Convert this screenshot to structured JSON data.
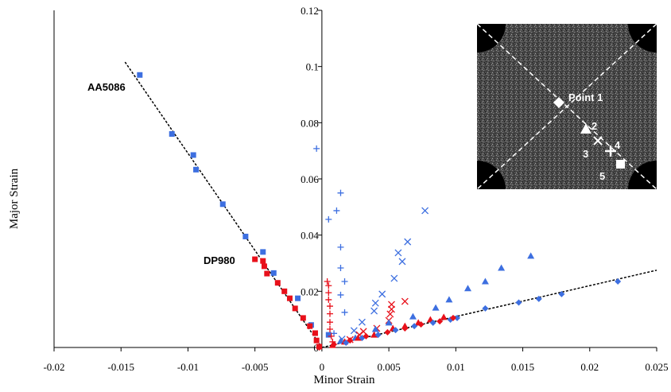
{
  "chart_data": {
    "type": "scatter",
    "x_label": "Minor Strain",
    "y_label": "Major Strain",
    "xlim": [
      -0.02,
      0.025
    ],
    "xticks": [
      -0.02,
      -0.015,
      -0.01,
      -0.005,
      0,
      0.005,
      0.01,
      0.015,
      0.02,
      0.025
    ],
    "ylim": [
      0,
      0.12
    ],
    "yticks": [
      0,
      0.02,
      0.04,
      0.06,
      0.08,
      0.1,
      0.12
    ],
    "annotations": [
      "AA5086",
      "DP980"
    ],
    "inset_labels": [
      "Point 1",
      "2",
      "3",
      "4",
      "5"
    ],
    "series": [
      {
        "marker": "square",
        "color": "#3d6fe0",
        "x": [
          -0.0136,
          -0.0112,
          -0.0096,
          -0.0094,
          -0.0074,
          -0.0057,
          -0.0044,
          -0.0036,
          -0.0018,
          -0.0008,
          0.0005
        ],
        "y": [
          0.097,
          0.076,
          0.0685,
          0.0633,
          0.051,
          0.0395,
          0.034,
          0.0265,
          0.0175,
          0.008,
          0.0045
        ]
      },
      {
        "marker": "square",
        "color": "#e8101a",
        "x": [
          -0.005,
          -0.0044,
          -0.0043,
          -0.0041,
          -0.0033,
          -0.0028,
          -0.0024,
          -0.002,
          -0.0014,
          -0.0009,
          -0.0005,
          -0.0004,
          -0.0002
        ],
        "y": [
          0.0314,
          0.0308,
          0.0289,
          0.0263,
          0.023,
          0.02,
          0.0175,
          0.0139,
          0.0105,
          0.0076,
          0.0051,
          0.0025,
          0.0003
        ]
      },
      {
        "marker": "plus",
        "color": "#3d6fe0",
        "x": [
          -0.0004,
          0.0014,
          0.0011,
          0.0005,
          0.0014,
          0.0014,
          0.0017,
          0.0014,
          0.0017,
          0.0009
        ],
        "y": [
          0.0708,
          0.055,
          0.0487,
          0.0456,
          0.0357,
          0.0283,
          0.0235,
          0.0187,
          0.0125,
          0.005
        ]
      },
      {
        "marker": "plus",
        "color": "#e8101a",
        "x": [
          0.0004,
          0.0005,
          0.0005,
          0.0005,
          0.0006,
          0.0006,
          0.0006,
          0.0006,
          0.0007,
          0.0008
        ],
        "y": [
          0.0235,
          0.022,
          0.0195,
          0.017,
          0.0147,
          0.012,
          0.009,
          0.0065,
          0.004,
          0.002
        ]
      },
      {
        "marker": "cross",
        "color": "#3d6fe0",
        "x": [
          0.0077,
          0.0064,
          0.0057,
          0.006,
          0.0054,
          0.0045,
          0.004,
          0.0039,
          0.003,
          0.0024,
          0.0015
        ],
        "y": [
          0.0487,
          0.0376,
          0.0337,
          0.0306,
          0.0246,
          0.019,
          0.0158,
          0.013,
          0.009,
          0.006,
          0.003
        ]
      },
      {
        "marker": "cross",
        "color": "#e8101a",
        "x": [
          0.0062,
          0.0052,
          0.0052,
          0.0051,
          0.005,
          0.0041,
          0.0031,
          0.0028,
          0.0021
        ],
        "y": [
          0.0164,
          0.0153,
          0.0136,
          0.0119,
          0.0096,
          0.0068,
          0.0057,
          0.0045,
          0.0028
        ]
      },
      {
        "marker": "triangle",
        "color": "#3d6fe0",
        "x": [
          0.0156,
          0.0134,
          0.0122,
          0.0109,
          0.0095,
          0.0085,
          0.0068,
          0.005,
          0.004,
          0.0025,
          0.0014
        ],
        "y": [
          0.0326,
          0.0283,
          0.0235,
          0.021,
          0.017,
          0.0141,
          0.011,
          0.0088,
          0.0065,
          0.0034,
          0.0023
        ]
      },
      {
        "marker": "triangle",
        "color": "#e8101a",
        "x": [
          0.0091,
          0.0081,
          0.0072,
          0.0062,
          0.0053,
          0.0039,
          0.0027,
          0.0017,
          0.0008
        ],
        "y": [
          0.0108,
          0.0099,
          0.0088,
          0.0076,
          0.0068,
          0.0045,
          0.0034,
          0.002,
          0.0008
        ]
      },
      {
        "marker": "diamond",
        "color": "#3d6fe0",
        "x": [
          0.0221,
          0.0179,
          0.0162,
          0.0147,
          0.0122,
          0.0101,
          0.0096,
          0.0083,
          0.0069,
          0.0055,
          0.0042,
          0.003,
          0.0018
        ],
        "y": [
          0.0235,
          0.019,
          0.0173,
          0.016,
          0.0139,
          0.0105,
          0.0099,
          0.0088,
          0.0076,
          0.0062,
          0.0045,
          0.0034,
          0.0017
        ]
      },
      {
        "marker": "diamond",
        "color": "#e8101a",
        "x": [
          0.0098,
          0.0088,
          0.0074,
          0.0062,
          0.0049,
          0.0033,
          0.0021,
          0.0009,
          -0.0002
        ],
        "y": [
          0.0105,
          0.0093,
          0.0082,
          0.0068,
          0.0054,
          0.004,
          0.0025,
          0.0011,
          0
        ]
      }
    ],
    "trend_lines": [
      {
        "x": [
          -0.0147,
          0
        ],
        "y": [
          0.1016,
          0
        ]
      },
      {
        "x": [
          0,
          0.025
        ],
        "y": [
          0,
          0.0275
        ]
      }
    ]
  }
}
